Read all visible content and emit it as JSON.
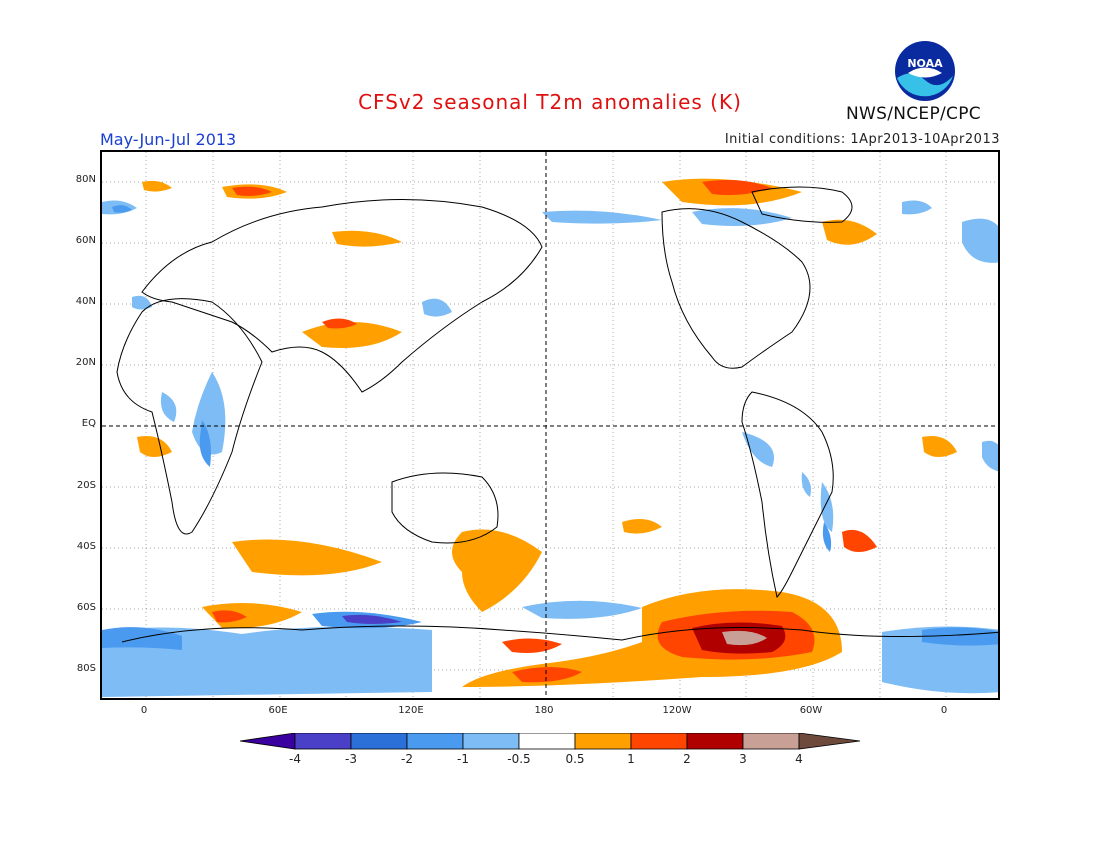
{
  "header": {
    "title": "CFSv2 seasonal T2m anomalies (K)",
    "season": "May-Jun-Jul 2013",
    "initial_conditions": "Initial conditions: 1Apr2013-10Apr2013",
    "organization": "NWS/NCEP/CPC",
    "logo_text": "NOAA"
  },
  "map": {
    "lat_labels": [
      "80N",
      "60N",
      "40N",
      "20N",
      "EQ",
      "20S",
      "40S",
      "60S",
      "80S"
    ],
    "lon_labels": [
      "0",
      "60E",
      "120E",
      "180",
      "120W",
      "60W",
      "0"
    ],
    "grid": "dotted",
    "reference_lines": [
      "EQ",
      "180"
    ]
  },
  "colorbar": {
    "labels": [
      "-4",
      "-3",
      "-2",
      "-1",
      "-0.5",
      "0.5",
      "1",
      "2",
      "3",
      "4"
    ],
    "colors": [
      "#3a00a0",
      "#4a40c8",
      "#2a70d8",
      "#4a9af0",
      "#7dbcf5",
      "#ffffff",
      "#ffa000",
      "#ff4500",
      "#b00000",
      "#c8a096",
      "#6e4a3c"
    ]
  },
  "colors": {
    "title": "#e01010",
    "season": "#1a3fd0",
    "coast": "#000000"
  }
}
